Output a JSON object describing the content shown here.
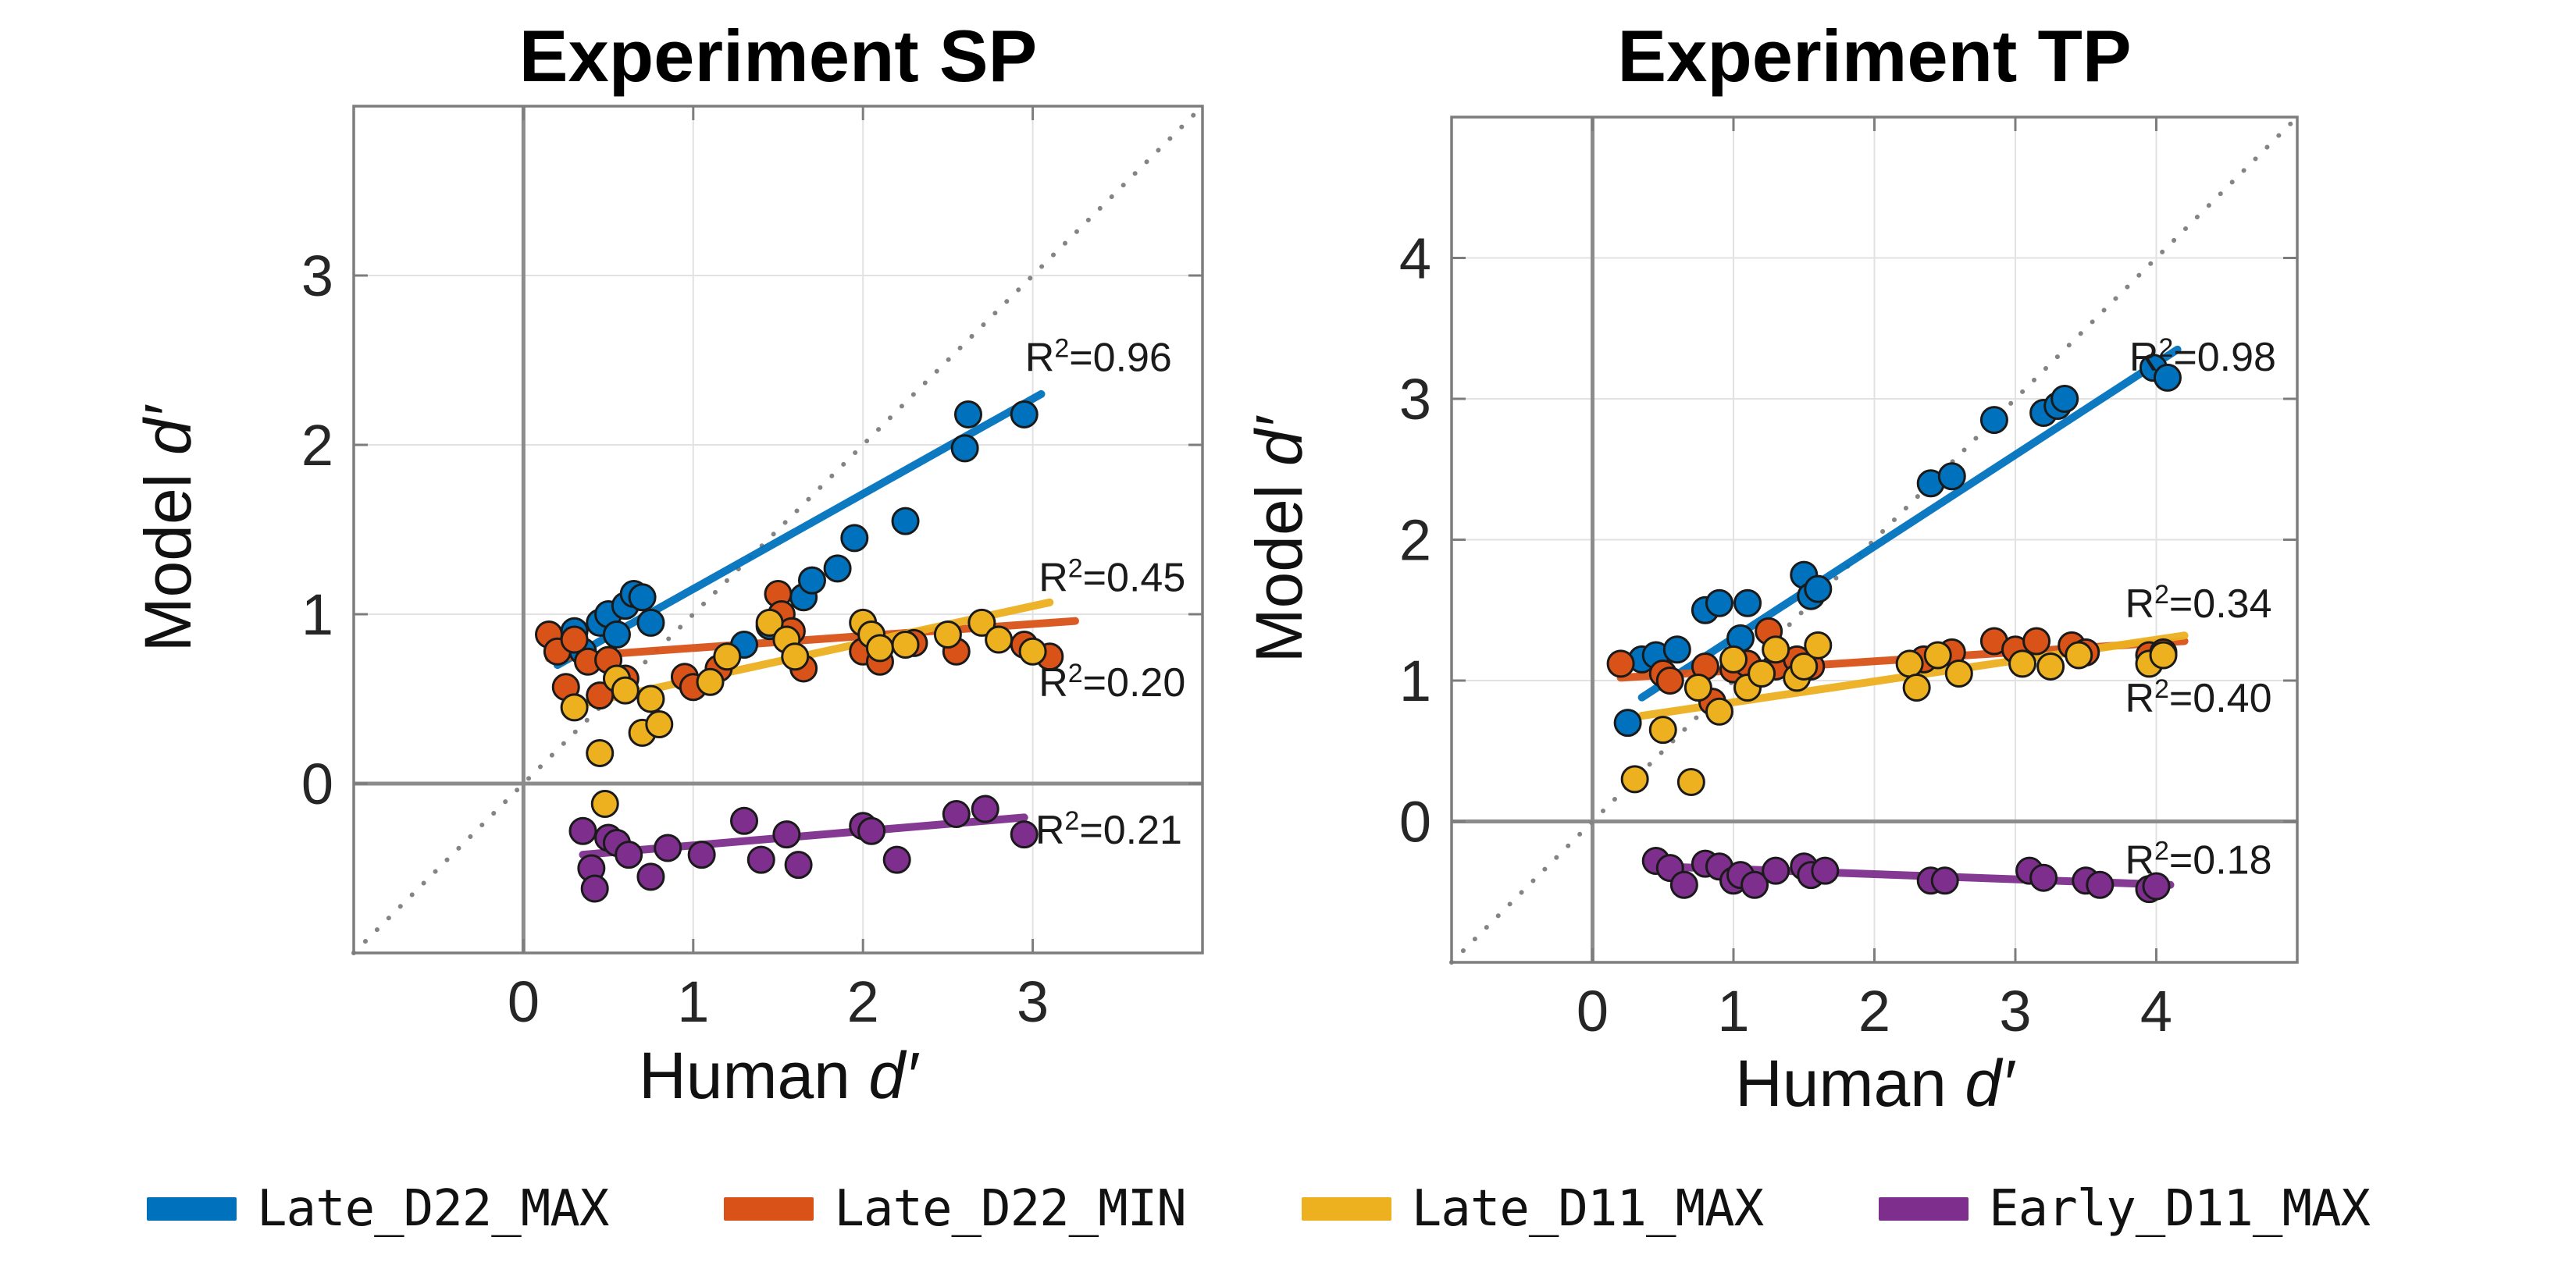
{
  "figure": {
    "background": "#ffffff",
    "colors": {
      "blue": "#0072BD",
      "orange": "#D95319",
      "yellow": "#EDB120",
      "purple": "#7E2F8E",
      "grid": "#e2e2e2",
      "zero_line": "#8c8c8c",
      "box": "#7d7d7d",
      "identity": "#848484",
      "tick_text": "#262626",
      "annotation_text": "#1a1a1a"
    }
  },
  "labels": {
    "human": "Human",
    "model": "Model",
    "dprime": "d′"
  },
  "legend": {
    "items": [
      {
        "label": "Late_D22_MAX",
        "color_key": "blue"
      },
      {
        "label": "Late_D22_MIN",
        "color_key": "orange"
      },
      {
        "label": "Late_D11_MAX",
        "color_key": "yellow"
      },
      {
        "label": "Early_D11_MAX",
        "color_key": "purple"
      }
    ]
  },
  "chart_data": [
    {
      "id": "sp",
      "type": "scatter",
      "title": "Experiment SP",
      "xlabel": "Human d′",
      "ylabel": "Model d′",
      "xlim": [
        -1,
        4
      ],
      "ylim": [
        -1,
        4
      ],
      "xticks": [
        0,
        1,
        2,
        3
      ],
      "yticks": [
        0,
        1,
        2,
        3
      ],
      "grid": true,
      "identity_line": true,
      "zero_lines": true,
      "series": [
        {
          "name": "Late_D22_MAX",
          "color_key": "blue",
          "r2": "0.96",
          "r2_anchor": [
            3.82,
            2.52
          ],
          "fit": [
            [
              0.2,
              0.7
            ],
            [
              3.05,
              2.3
            ]
          ],
          "points": [
            [
              0.2,
              0.82
            ],
            [
              0.3,
              0.9
            ],
            [
              0.35,
              0.78
            ],
            [
              0.45,
              0.95
            ],
            [
              0.5,
              1.0
            ],
            [
              0.55,
              0.88
            ],
            [
              0.6,
              1.05
            ],
            [
              0.65,
              1.12
            ],
            [
              0.7,
              1.1
            ],
            [
              0.75,
              0.95
            ],
            [
              1.3,
              0.82
            ],
            [
              1.45,
              0.93
            ],
            [
              1.65,
              1.1
            ],
            [
              1.7,
              1.2
            ],
            [
              1.85,
              1.27
            ],
            [
              1.95,
              1.45
            ],
            [
              2.25,
              1.55
            ],
            [
              2.6,
              1.98
            ],
            [
              2.62,
              2.18
            ],
            [
              2.95,
              2.18
            ]
          ]
        },
        {
          "name": "Late_D22_MIN",
          "color_key": "orange",
          "r2": "0.20",
          "r2_anchor": [
            3.9,
            0.6
          ],
          "fit": [
            [
              0.15,
              0.74
            ],
            [
              3.25,
              0.96
            ]
          ],
          "points": [
            [
              0.15,
              0.88
            ],
            [
              0.2,
              0.78
            ],
            [
              0.25,
              0.57
            ],
            [
              0.3,
              0.85
            ],
            [
              0.38,
              0.72
            ],
            [
              0.45,
              0.52
            ],
            [
              0.5,
              0.73
            ],
            [
              0.6,
              0.62
            ],
            [
              0.95,
              0.63
            ],
            [
              1.0,
              0.57
            ],
            [
              1.15,
              0.68
            ],
            [
              1.5,
              1.12
            ],
            [
              1.52,
              1.0
            ],
            [
              1.58,
              0.9
            ],
            [
              1.65,
              0.68
            ],
            [
              2.0,
              0.78
            ],
            [
              2.1,
              0.72
            ],
            [
              2.3,
              0.83
            ],
            [
              2.55,
              0.78
            ],
            [
              2.95,
              0.82
            ],
            [
              3.1,
              0.75
            ]
          ]
        },
        {
          "name": "Late_D11_MAX",
          "color_key": "yellow",
          "r2": "0.45",
          "r2_anchor": [
            3.9,
            1.22
          ],
          "fit": [
            [
              0.3,
              0.46
            ],
            [
              3.1,
              1.07
            ]
          ],
          "points": [
            [
              0.3,
              0.45
            ],
            [
              0.45,
              0.18
            ],
            [
              0.48,
              -0.12
            ],
            [
              0.55,
              0.62
            ],
            [
              0.6,
              0.55
            ],
            [
              0.7,
              0.3
            ],
            [
              0.75,
              0.5
            ],
            [
              0.8,
              0.35
            ],
            [
              1.1,
              0.6
            ],
            [
              1.2,
              0.75
            ],
            [
              1.45,
              0.95
            ],
            [
              1.55,
              0.85
            ],
            [
              1.6,
              0.75
            ],
            [
              2.0,
              0.95
            ],
            [
              2.05,
              0.88
            ],
            [
              2.1,
              0.8
            ],
            [
              2.25,
              0.82
            ],
            [
              2.5,
              0.88
            ],
            [
              2.7,
              0.95
            ],
            [
              2.8,
              0.85
            ],
            [
              3.0,
              0.78
            ]
          ]
        },
        {
          "name": "Early_D11_MAX",
          "color_key": "purple",
          "r2": "0.21",
          "r2_anchor": [
            3.88,
            -0.27
          ],
          "fit": [
            [
              0.35,
              -0.42
            ],
            [
              2.95,
              -0.2
            ]
          ],
          "points": [
            [
              0.35,
              -0.28
            ],
            [
              0.4,
              -0.5
            ],
            [
              0.42,
              -0.62
            ],
            [
              0.5,
              -0.32
            ],
            [
              0.55,
              -0.35
            ],
            [
              0.62,
              -0.42
            ],
            [
              0.75,
              -0.55
            ],
            [
              0.85,
              -0.38
            ],
            [
              1.05,
              -0.42
            ],
            [
              1.3,
              -0.22
            ],
            [
              1.4,
              -0.45
            ],
            [
              1.55,
              -0.3
            ],
            [
              1.62,
              -0.48
            ],
            [
              2.0,
              -0.25
            ],
            [
              2.05,
              -0.28
            ],
            [
              2.2,
              -0.45
            ],
            [
              2.55,
              -0.18
            ],
            [
              2.72,
              -0.15
            ],
            [
              2.95,
              -0.3
            ]
          ]
        }
      ]
    },
    {
      "id": "tp",
      "type": "scatter",
      "title": "Experiment TP",
      "xlabel": "Human d′",
      "ylabel": "Model d′",
      "xlim": [
        -1,
        5
      ],
      "ylim": [
        -1,
        5
      ],
      "xticks": [
        0,
        1,
        2,
        3,
        4
      ],
      "yticks": [
        0,
        1,
        2,
        3,
        4
      ],
      "grid": true,
      "identity_line": true,
      "zero_lines": true,
      "series": [
        {
          "name": "Late_D22_MAX",
          "color_key": "blue",
          "r2": "0.98",
          "r2_anchor": [
            4.85,
            3.3
          ],
          "fit": [
            [
              0.35,
              0.88
            ],
            [
              4.15,
              3.35
            ]
          ],
          "points": [
            [
              0.25,
              0.7
            ],
            [
              0.35,
              1.15
            ],
            [
              0.45,
              1.18
            ],
            [
              0.6,
              1.22
            ],
            [
              0.8,
              1.5
            ],
            [
              0.9,
              1.55
            ],
            [
              1.05,
              1.3
            ],
            [
              1.1,
              1.55
            ],
            [
              1.5,
              1.75
            ],
            [
              1.55,
              1.6
            ],
            [
              1.6,
              1.65
            ],
            [
              2.4,
              2.4
            ],
            [
              2.55,
              2.45
            ],
            [
              2.85,
              2.85
            ],
            [
              3.2,
              2.9
            ],
            [
              3.3,
              2.95
            ],
            [
              3.35,
              3.0
            ],
            [
              3.98,
              3.22
            ],
            [
              4.08,
              3.15
            ]
          ]
        },
        {
          "name": "Late_D22_MIN",
          "color_key": "orange",
          "r2": "0.34",
          "r2_anchor": [
            4.82,
            1.55
          ],
          "fit": [
            [
              0.2,
              1.02
            ],
            [
              4.2,
              1.28
            ]
          ],
          "points": [
            [
              0.2,
              1.12
            ],
            [
              0.5,
              1.05
            ],
            [
              0.55,
              1.0
            ],
            [
              0.8,
              1.1
            ],
            [
              0.85,
              0.85
            ],
            [
              1.0,
              1.08
            ],
            [
              1.1,
              1.12
            ],
            [
              1.25,
              1.35
            ],
            [
              1.3,
              1.1
            ],
            [
              1.45,
              1.15
            ],
            [
              1.55,
              1.1
            ],
            [
              2.35,
              1.15
            ],
            [
              2.55,
              1.2
            ],
            [
              2.85,
              1.28
            ],
            [
              3.0,
              1.22
            ],
            [
              3.15,
              1.28
            ],
            [
              3.4,
              1.25
            ],
            [
              3.5,
              1.2
            ],
            [
              3.95,
              1.18
            ],
            [
              4.05,
              1.2
            ]
          ]
        },
        {
          "name": "Late_D11_MAX",
          "color_key": "yellow",
          "r2": "0.40",
          "r2_anchor": [
            4.82,
            0.88
          ],
          "fit": [
            [
              0.35,
              0.75
            ],
            [
              4.2,
              1.32
            ]
          ],
          "points": [
            [
              0.3,
              0.3
            ],
            [
              0.5,
              0.65
            ],
            [
              0.7,
              0.28
            ],
            [
              0.75,
              0.95
            ],
            [
              0.9,
              0.78
            ],
            [
              1.0,
              1.15
            ],
            [
              1.1,
              0.95
            ],
            [
              1.2,
              1.05
            ],
            [
              1.3,
              1.22
            ],
            [
              1.45,
              1.02
            ],
            [
              1.5,
              1.1
            ],
            [
              1.6,
              1.25
            ],
            [
              2.25,
              1.12
            ],
            [
              2.3,
              0.95
            ],
            [
              2.45,
              1.18
            ],
            [
              2.6,
              1.05
            ],
            [
              3.05,
              1.12
            ],
            [
              3.25,
              1.1
            ],
            [
              3.45,
              1.18
            ],
            [
              3.95,
              1.12
            ],
            [
              4.05,
              1.18
            ]
          ]
        },
        {
          "name": "Early_D11_MAX",
          "color_key": "purple",
          "r2": "0.18",
          "r2_anchor": [
            4.82,
            -0.27
          ],
          "fit": [
            [
              0.5,
              -0.32
            ],
            [
              4.1,
              -0.45
            ]
          ],
          "points": [
            [
              0.45,
              -0.28
            ],
            [
              0.55,
              -0.33
            ],
            [
              0.65,
              -0.45
            ],
            [
              0.8,
              -0.3
            ],
            [
              0.9,
              -0.32
            ],
            [
              1.0,
              -0.42
            ],
            [
              1.05,
              -0.38
            ],
            [
              1.15,
              -0.45
            ],
            [
              1.3,
              -0.35
            ],
            [
              1.5,
              -0.32
            ],
            [
              1.55,
              -0.38
            ],
            [
              1.65,
              -0.35
            ],
            [
              2.4,
              -0.42
            ],
            [
              2.5,
              -0.42
            ],
            [
              3.1,
              -0.35
            ],
            [
              3.2,
              -0.4
            ],
            [
              3.5,
              -0.42
            ],
            [
              3.6,
              -0.45
            ],
            [
              3.95,
              -0.48
            ],
            [
              4.0,
              -0.46
            ]
          ]
        }
      ]
    }
  ]
}
